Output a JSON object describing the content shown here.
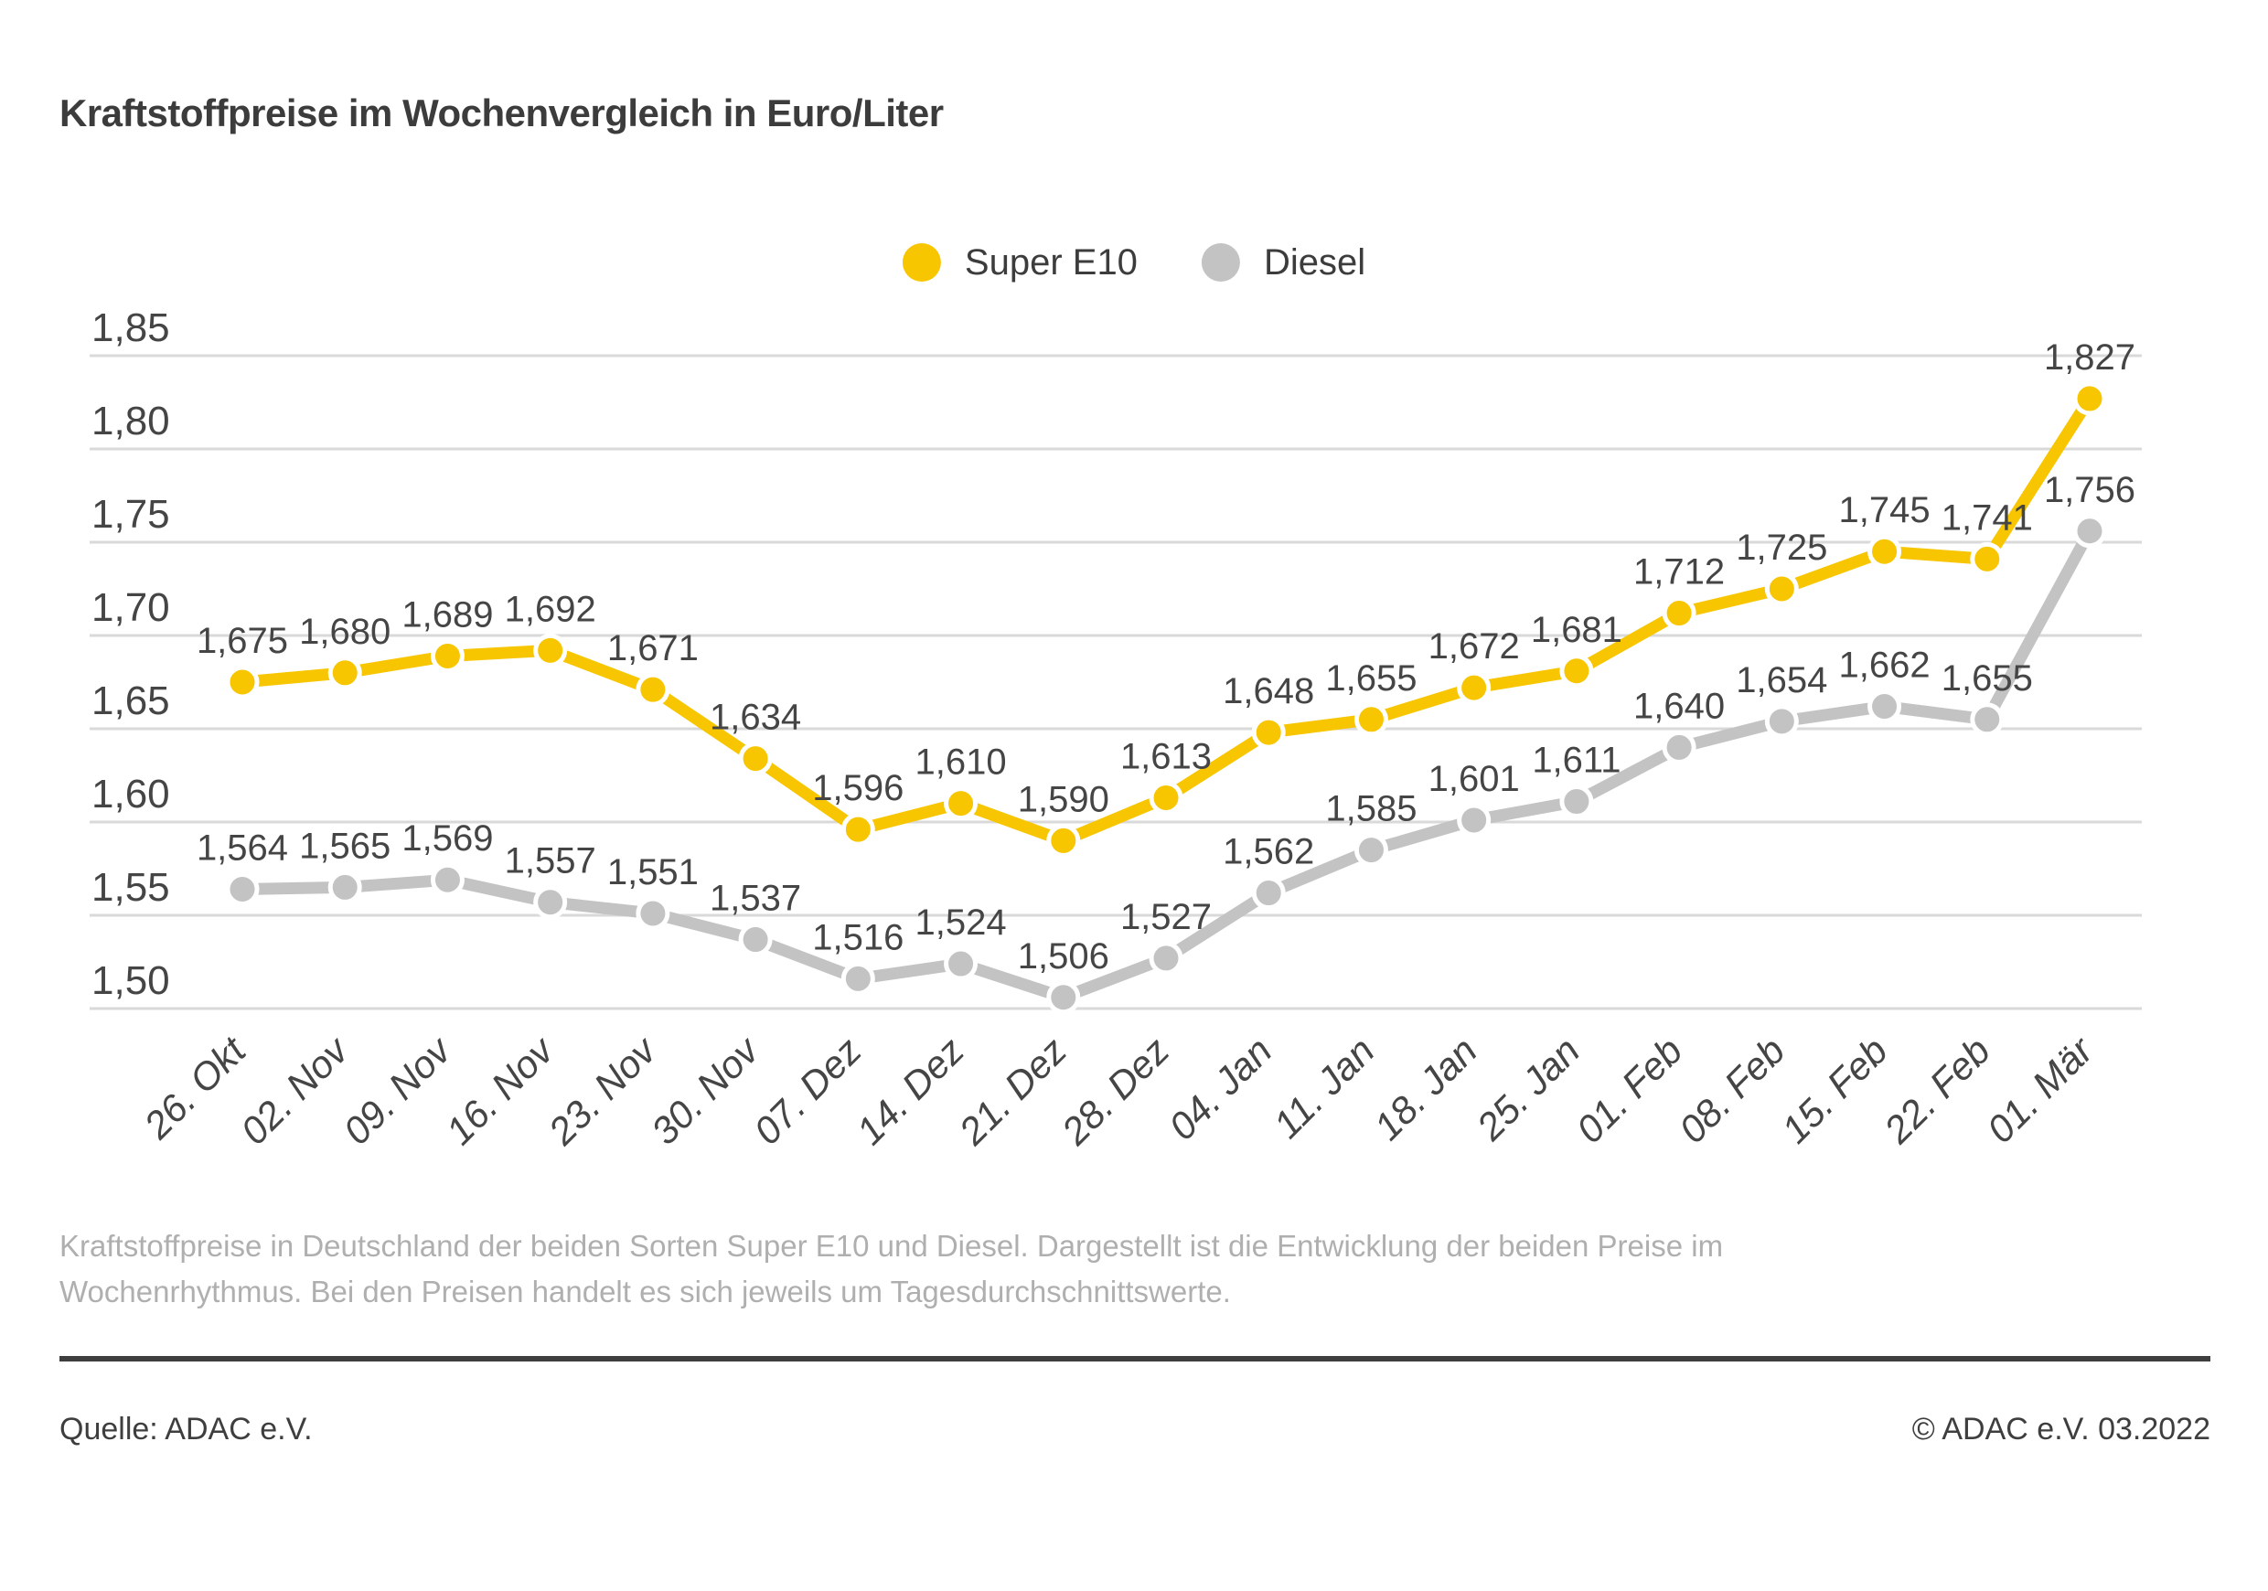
{
  "title": "Kraftstoffpreise im Wochenvergleich in Euro/Liter",
  "chart_data": {
    "type": "line",
    "unit": "Euro/Liter",
    "x": [
      "26. Okt",
      "02. Nov",
      "09. Nov",
      "16. Nov",
      "23. Nov",
      "30. Nov",
      "07. Dez",
      "14. Dez",
      "21. Dez",
      "28. Dez",
      "04. Jan",
      "11. Jan",
      "18. Jan",
      "25. Jan",
      "01. Feb",
      "08. Feb",
      "15. Feb",
      "22. Feb",
      "01. Mär"
    ],
    "series": [
      {
        "name": "Super E10",
        "color": "#f7c600",
        "values": [
          1.675,
          1.68,
          1.689,
          1.692,
          1.671,
          1.634,
          1.596,
          1.61,
          1.59,
          1.613,
          1.648,
          1.655,
          1.672,
          1.681,
          1.712,
          1.725,
          1.745,
          1.741,
          1.827
        ]
      },
      {
        "name": "Diesel",
        "color": "#c3c3c3",
        "values": [
          1.564,
          1.565,
          1.569,
          1.557,
          1.551,
          1.537,
          1.516,
          1.524,
          1.506,
          1.527,
          1.562,
          1.585,
          1.601,
          1.611,
          1.64,
          1.654,
          1.662,
          1.655,
          1.756
        ]
      }
    ],
    "title": "Kraftstoffpreise im Wochenvergleich in Euro/Liter",
    "xlabel": "",
    "ylabel": "",
    "ylim": [
      1.5,
      1.85
    ],
    "ytick_step": 0.05,
    "ytick_labels": [
      "1,50",
      "1,55",
      "1,60",
      "1,65",
      "1,70",
      "1,75",
      "1,80",
      "1,85"
    ],
    "grid": true,
    "legend_position": "top-center",
    "value_labels": true,
    "x_label_rotation": -45,
    "decimal_separator": ","
  },
  "description": "Kraftstoffpreise in Deutschland der beiden Sorten Super E10 und Diesel. Dargestellt ist die Entwicklung der beiden Preise im\nWochenrhythmus. Bei den Preisen handelt es sich jeweils um Tagesdurchschnittswerte.",
  "footer": {
    "source": "Quelle: ADAC e.V.",
    "copyright": "© ADAC e.V. 03.2022"
  },
  "colors": {
    "super_e10": "#f7c600",
    "diesel": "#c3c3c3",
    "gridline": "#d9d9d9",
    "text_dark": "#3c3c3c",
    "text_axis": "#454545",
    "text_muted": "#afafaf"
  }
}
